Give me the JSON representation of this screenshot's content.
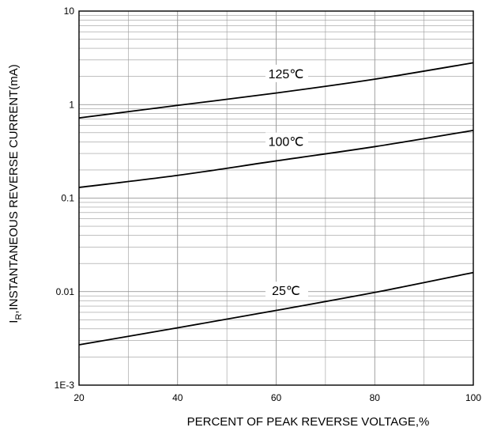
{
  "chart_data": {
    "type": "line",
    "title": "",
    "xlabel": "PERCENT OF PEAK REVERSE VOLTAGE,%",
    "ylabel": {
      "prefix": "I",
      "subscript": "R",
      "rest": ",INSTANTANEOUS REVERSE CURRENT(mA)"
    },
    "xlim": [
      20,
      100
    ],
    "ylim": [
      0.001,
      10
    ],
    "yscale": "log",
    "grid": true,
    "x_ticks": [
      "20",
      "40",
      "60",
      "80",
      "100"
    ],
    "y_ticks": [
      "1E-3",
      "0.01",
      "0.1",
      "1",
      "10"
    ],
    "series": [
      {
        "name": "125℃",
        "x": [
          20,
          40,
          60,
          80,
          100
        ],
        "y": [
          0.72,
          0.98,
          1.33,
          1.87,
          2.8
        ]
      },
      {
        "name": "100℃",
        "x": [
          20,
          40,
          60,
          80,
          100
        ],
        "y": [
          0.13,
          0.175,
          0.25,
          0.355,
          0.53
        ]
      },
      {
        "name": "25℃",
        "x": [
          20,
          40,
          60,
          80,
          100
        ],
        "y": [
          0.0027,
          0.0041,
          0.0063,
          0.0098,
          0.016
        ]
      }
    ]
  }
}
